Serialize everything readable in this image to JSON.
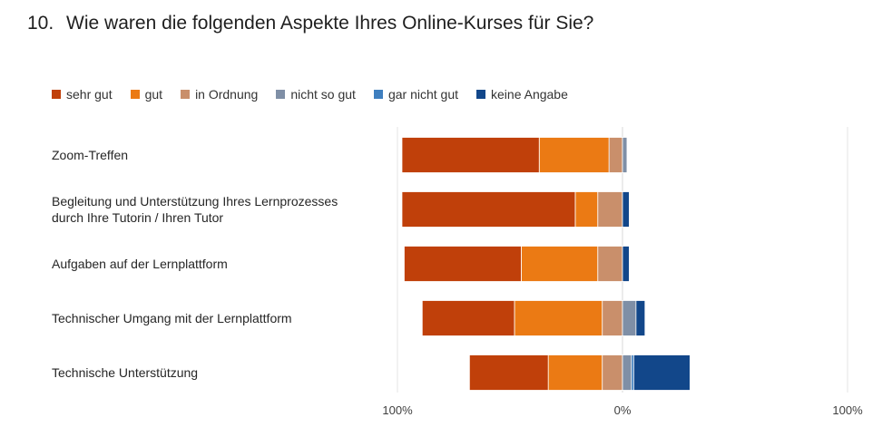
{
  "title": {
    "number": "10.",
    "text": "Wie waren die folgenden Aspekte Ihres Online-Kurses für Sie?"
  },
  "chart_data": {
    "type": "bar",
    "orientation": "horizontal",
    "stacking": "diverging",
    "title": "",
    "xlabel": "",
    "ylabel": "",
    "xlim": [
      -100,
      100
    ],
    "ticks": [
      {
        "value": -100,
        "label": "100%"
      },
      {
        "value": 0,
        "label": "0%"
      },
      {
        "value": 100,
        "label": "100%"
      }
    ],
    "grid": false,
    "legend_position": "top-left",
    "categories": [
      "Zoom-Treffen",
      "Begleitung und Unterstützung Ihres Lernprozesses durch Ihre Tutorin / Ihren Tutor",
      "Aufgaben auf der Lernplattform",
      "Technischer Umgang mit der Lernplattform",
      "Technische Unterstützung"
    ],
    "category_lines": [
      [
        "Zoom-Treffen"
      ],
      [
        "Begleitung und Unterstützung Ihres Lernprozesses",
        "durch Ihre Tutorin / Ihren Tutor"
      ],
      [
        "Aufgaben auf der Lernplattform"
      ],
      [
        "Technischer Umgang mit der Lernplattform"
      ],
      [
        "Technische Unterstützung"
      ]
    ],
    "series": [
      {
        "name": "sehr gut",
        "color": "#C0400A",
        "side": "left",
        "values": [
          61,
          77,
          52,
          41,
          35
        ]
      },
      {
        "name": "gut",
        "color": "#EB7A14",
        "side": "left",
        "values": [
          31,
          10,
          34,
          39,
          24
        ]
      },
      {
        "name": "in Ordnung",
        "color": "#C98F6B",
        "side": "left",
        "values": [
          6,
          11,
          11,
          9,
          9
        ]
      },
      {
        "name": "nicht so gut",
        "color": "#7F8FA6",
        "side": "right",
        "values": [
          2,
          0,
          0,
          6,
          4
        ]
      },
      {
        "name": "gar nicht gut",
        "color": "#3F7FBF",
        "side": "right",
        "values": [
          0,
          0,
          0,
          0,
          1
        ]
      },
      {
        "name": "keine Angabe",
        "color": "#12478A",
        "side": "right",
        "values": [
          0,
          3,
          3,
          4,
          25
        ]
      }
    ]
  }
}
